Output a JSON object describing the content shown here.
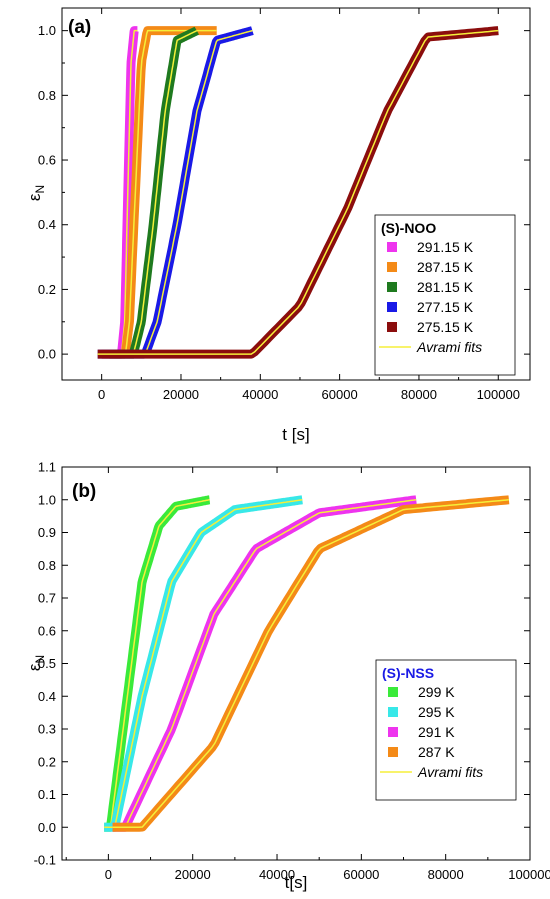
{
  "chart_data": [
    {
      "type": "line",
      "panel_label": "(a)",
      "xlabel": "t [s]",
      "ylabel": "ε",
      "ylabel_sub": "N",
      "xlim": [
        -10000,
        108000
      ],
      "ylim": [
        -0.08,
        1.07
      ],
      "xticks": [
        0,
        20000,
        40000,
        60000,
        80000,
        100000
      ],
      "xtick_labels": [
        "0",
        "20000",
        "40000",
        "60000",
        "80000",
        "100000"
      ],
      "yticks": [
        0.0,
        0.2,
        0.4,
        0.6,
        0.8,
        1.0
      ],
      "ytick_labels": [
        "0.0",
        "0.2",
        "0.4",
        "0.6",
        "0.8",
        "1.0"
      ],
      "grid": false,
      "legend": {
        "title": "(S)-NOO",
        "title_color": "#000000",
        "placement": "bottom-right",
        "fit_label": "Avrami fits"
      },
      "fit_color": "#f5ef3a",
      "series": [
        {
          "name": "291.15 K",
          "color": "#ee34ee",
          "t_start": 0,
          "t_end": 9000,
          "x": [
            0,
            5000,
            5800,
            6600,
            7400,
            8200,
            9000
          ],
          "y": [
            0.0,
            0.0,
            0.1,
            0.5,
            0.9,
            1.0,
            1.0
          ]
        },
        {
          "name": "287.15 K",
          "color": "#f48a17",
          "t_start": 0,
          "t_end": 29000,
          "x": [
            0,
            6000,
            7000,
            8500,
            10000,
            11500,
            29000
          ],
          "y": [
            0.0,
            0.0,
            0.1,
            0.5,
            0.9,
            1.0,
            1.0
          ]
        },
        {
          "name": "281.15 K",
          "color": "#1f7a1f",
          "t_start": 2000,
          "t_end": 24000,
          "x": [
            2000,
            8000,
            10000,
            13000,
            16000,
            19000,
            24000
          ],
          "y": [
            0.0,
            0.0,
            0.1,
            0.4,
            0.75,
            0.97,
            1.0
          ]
        },
        {
          "name": "277.15 K",
          "color": "#1a1ae6",
          "t_start": -1000,
          "t_end": 38000,
          "x": [
            -1000,
            11000,
            14000,
            19000,
            24000,
            29000,
            38000
          ],
          "y": [
            0.0,
            0.0,
            0.1,
            0.4,
            0.75,
            0.97,
            1.0
          ]
        },
        {
          "name": "275.15 K",
          "color": "#8b0d0d",
          "t_start": -1000,
          "t_end": 100000,
          "x": [
            -1000,
            38000,
            50000,
            62000,
            72000,
            82000,
            100000
          ],
          "y": [
            0.0,
            0.0,
            0.15,
            0.45,
            0.75,
            0.98,
            1.0
          ]
        }
      ]
    },
    {
      "type": "line",
      "panel_label": "(b)",
      "xlabel": "t[s]",
      "ylabel": "ε",
      "ylabel_sub": "N",
      "xlim": [
        -11000,
        100000
      ],
      "ylim": [
        -0.1,
        1.1
      ],
      "xticks": [
        0,
        20000,
        40000,
        60000,
        80000,
        100000
      ],
      "xtick_labels": [
        "0",
        "20000",
        "40000",
        "60000",
        "80000",
        "100000"
      ],
      "yticks": [
        -0.1,
        0.0,
        0.1,
        0.2,
        0.3,
        0.4,
        0.5,
        0.6,
        0.7,
        0.8,
        0.9,
        1.0,
        1.1
      ],
      "ytick_labels": [
        "-0.1",
        "0.0",
        "0.1",
        "0.2",
        "0.3",
        "0.4",
        "0.5",
        "0.6",
        "0.7",
        "0.8",
        "0.9",
        "1.0",
        "1.1"
      ],
      "grid": false,
      "legend": {
        "title": "(S)-NSS",
        "title_color": "#1a1ae6",
        "placement": "bottom-right",
        "fit_label": "Avrami fits"
      },
      "fit_color": "#f5ef3a",
      "series": [
        {
          "name": "299 K",
          "color": "#3aea3a",
          "t_start": -1000,
          "t_end": 24000,
          "x": [
            -1000,
            500,
            4000,
            8000,
            12000,
            16000,
            24000
          ],
          "y": [
            0.0,
            0.0,
            0.35,
            0.75,
            0.92,
            0.98,
            1.0
          ]
        },
        {
          "name": "295 K",
          "color": "#38e8e8",
          "t_start": -1000,
          "t_end": 46000,
          "x": [
            -1000,
            1500,
            8000,
            15000,
            22000,
            30000,
            46000
          ],
          "y": [
            0.0,
            0.0,
            0.4,
            0.75,
            0.9,
            0.97,
            1.0
          ]
        },
        {
          "name": "291 K",
          "color": "#ee34ee",
          "t_start": 1000,
          "t_end": 73000,
          "x": [
            1000,
            4000,
            15000,
            25000,
            35000,
            50000,
            73000
          ],
          "y": [
            0.0,
            0.0,
            0.3,
            0.65,
            0.85,
            0.96,
            1.0
          ]
        },
        {
          "name": "287 K",
          "color": "#f48a17",
          "t_start": 1000,
          "t_end": 95000,
          "x": [
            1000,
            8000,
            25000,
            38000,
            50000,
            70000,
            95000
          ],
          "y": [
            0.0,
            0.0,
            0.25,
            0.6,
            0.85,
            0.97,
            1.0
          ]
        }
      ]
    }
  ]
}
